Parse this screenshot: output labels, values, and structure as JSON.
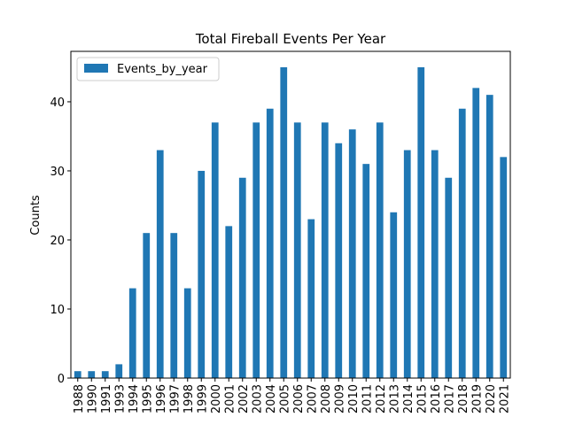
{
  "chart_data": {
    "type": "bar",
    "title": "Total Fireball Events Per Year",
    "y_label": "Counts",
    "categories": [
      "1988",
      "1990",
      "1991",
      "1993",
      "1994",
      "1995",
      "1996",
      "1997",
      "1998",
      "1999",
      "2000",
      "2001",
      "2002",
      "2003",
      "2004",
      "2005",
      "2006",
      "2007",
      "2008",
      "2009",
      "2010",
      "2011",
      "2012",
      "2013",
      "2014",
      "2015",
      "2016",
      "2017",
      "2018",
      "2019",
      "2020",
      "2021"
    ],
    "series": [
      {
        "name": "Events_by_year",
        "color": "#1f77b4",
        "values": [
          1,
          1,
          1,
          2,
          13,
          21,
          33,
          21,
          13,
          30,
          37,
          22,
          29,
          37,
          39,
          45,
          37,
          23,
          37,
          34,
          36,
          31,
          37,
          24,
          33,
          45,
          33,
          29,
          39,
          42,
          41,
          32
        ]
      }
    ],
    "ylim": [
      0,
      47.3
    ],
    "yticks": [
      0,
      10,
      20,
      30,
      40
    ],
    "legend": "upper left"
  }
}
